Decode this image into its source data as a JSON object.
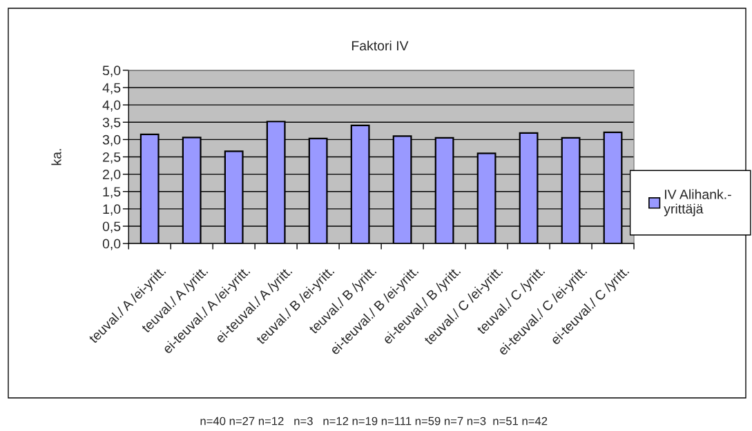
{
  "chart_data": {
    "type": "bar",
    "title": "Faktori IV",
    "ylabel": "ka.",
    "categories": [
      "teuval./ A /ei-yritt.",
      "teuval./ A /yritt.",
      "ei-teuval./ A /ei-yritt.",
      "ei-teuval./ A /yritt.",
      "teuval./ B /ei-yritt.",
      "teuval./ B /yritt.",
      "ei-teuval./ B /ei-yritt.",
      "ei-teuval./ B /yritt.",
      "teuval./ C /ei-yritt.",
      "teuval./ C /yritt.",
      "ei-teuval./ C /ei-yritt.",
      "ei-teuval./ C /yritt."
    ],
    "series": [
      {
        "name": "IV Alihank.-\nyrittäjä",
        "color": "#9999ff",
        "values": [
          3.15,
          3.06,
          2.66,
          3.52,
          3.03,
          3.41,
          3.1,
          3.05,
          2.6,
          3.19,
          3.05,
          3.21
        ]
      }
    ],
    "ylim": [
      0,
      5
    ],
    "yticks": [
      {
        "value": 0,
        "label": "0,0"
      },
      {
        "value": 0.5,
        "label": "0,5"
      },
      {
        "value": 1,
        "label": "1,0"
      },
      {
        "value": 1.5,
        "label": "1,5"
      },
      {
        "value": 2,
        "label": "2,0"
      },
      {
        "value": 2.5,
        "label": "2,5"
      },
      {
        "value": 3,
        "label": "3,0"
      },
      {
        "value": 3.5,
        "label": "3,5"
      },
      {
        "value": 4,
        "label": "4,0"
      },
      {
        "value": 4.5,
        "label": "4,5"
      },
      {
        "value": 5,
        "label": "5,0"
      }
    ],
    "grid": "y",
    "legend": "right",
    "annotations": [
      "n=40 n=27 n=12   n=3   n=12 n=19 n=111 n=59 n=7 n=3  n=51 n=42"
    ]
  }
}
